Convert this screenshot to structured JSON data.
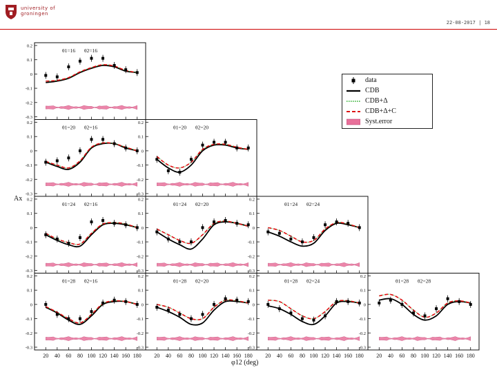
{
  "header": {
    "logo_line1": "university of",
    "logo_line2": "groningen",
    "date": "22-08-2017",
    "page": "18"
  },
  "chart_data": {
    "type": "scatter",
    "xlabel": "φ12 (deg)",
    "ylabel": "Ax",
    "xlim": [
      10,
      190
    ],
    "ylim": [
      -0.3,
      0.2
    ],
    "x_ticks": [
      20,
      40,
      60,
      80,
      100,
      120,
      140,
      160,
      180
    ],
    "y_ticks": [
      0.2,
      0.1,
      0,
      -0.1,
      -0.2,
      -0.3
    ],
    "x_tick_labels": [
      "20",
      "40",
      "60",
      "80",
      "100",
      "120",
      "140",
      "160",
      "180"
    ],
    "y_tick_labels": [
      "0.2",
      "0.1",
      "0",
      "-0.1",
      "-0.2",
      "-0.3"
    ],
    "legend": [
      {
        "label": "data",
        "style": "marker",
        "color": "#000000"
      },
      {
        "label": "CDB",
        "style": "solid",
        "color": "#000000"
      },
      {
        "label": "CDB+Δ",
        "style": "dotted",
        "color": "#22aa22"
      },
      {
        "label": "CDB+Δ+C",
        "style": "dashed",
        "color": "#dd1111"
      },
      {
        "label": "Syst.error",
        "style": "band",
        "color": "#e8709a"
      }
    ],
    "panels": [
      {
        "row": 0,
        "col": 0,
        "theta1": "θ1=16",
        "theta2": "θ2=16",
        "data": [
          [
            20,
            -0.01
          ],
          [
            40,
            -0.02
          ],
          [
            60,
            0.05
          ],
          [
            80,
            0.09
          ],
          [
            100,
            0.11
          ],
          [
            120,
            0.11
          ],
          [
            140,
            0.06
          ],
          [
            160,
            0.03
          ],
          [
            180,
            0.01
          ]
        ],
        "cdb": [
          [
            20,
            -0.06
          ],
          [
            40,
            -0.05
          ],
          [
            60,
            -0.03
          ],
          [
            80,
            0.01
          ],
          [
            100,
            0.04
          ],
          [
            120,
            0.06
          ],
          [
            140,
            0.05
          ],
          [
            160,
            0.02
          ],
          [
            180,
            0.01
          ]
        ],
        "cdbdc": [
          [
            20,
            -0.05
          ],
          [
            40,
            -0.045
          ],
          [
            60,
            -0.025
          ],
          [
            80,
            0.015
          ],
          [
            100,
            0.045
          ],
          [
            120,
            0.065
          ],
          [
            140,
            0.055
          ],
          [
            160,
            0.025
          ],
          [
            180,
            0.01
          ]
        ],
        "syst": -0.235
      },
      {
        "row": 1,
        "col": 0,
        "theta1": "θ1=20",
        "theta2": "θ2=16",
        "data": [
          [
            20,
            -0.08
          ],
          [
            40,
            -0.07
          ],
          [
            60,
            -0.05
          ],
          [
            80,
            0.0
          ],
          [
            100,
            0.08
          ],
          [
            120,
            0.08
          ],
          [
            140,
            0.05
          ],
          [
            160,
            0.02
          ],
          [
            180,
            0.0
          ]
        ],
        "cdb": [
          [
            20,
            -0.08
          ],
          [
            40,
            -0.11
          ],
          [
            60,
            -0.13
          ],
          [
            80,
            -0.08
          ],
          [
            100,
            0.02
          ],
          [
            120,
            0.05
          ],
          [
            140,
            0.05
          ],
          [
            160,
            0.02
          ],
          [
            180,
            0.0
          ]
        ],
        "cdbdc": [
          [
            20,
            -0.075
          ],
          [
            40,
            -0.1
          ],
          [
            60,
            -0.12
          ],
          [
            80,
            -0.07
          ],
          [
            100,
            0.025
          ],
          [
            120,
            0.055
          ],
          [
            140,
            0.05
          ],
          [
            160,
            0.025
          ],
          [
            180,
            0.0
          ]
        ],
        "syst": -0.235
      },
      {
        "row": 1,
        "col": 1,
        "theta1": "θ1=20",
        "theta2": "θ2=20",
        "data": [
          [
            20,
            -0.06
          ],
          [
            40,
            -0.14
          ],
          [
            60,
            -0.15
          ],
          [
            80,
            -0.06
          ],
          [
            100,
            0.04
          ],
          [
            120,
            0.06
          ],
          [
            140,
            0.06
          ],
          [
            160,
            0.02
          ],
          [
            180,
            0.02
          ]
        ],
        "cdb": [
          [
            20,
            -0.06
          ],
          [
            40,
            -0.12
          ],
          [
            60,
            -0.15
          ],
          [
            80,
            -0.1
          ],
          [
            100,
            0.0
          ],
          [
            120,
            0.04
          ],
          [
            140,
            0.04
          ],
          [
            160,
            0.02
          ],
          [
            180,
            0.01
          ]
        ],
        "cdbdc": [
          [
            20,
            -0.04
          ],
          [
            40,
            -0.1
          ],
          [
            60,
            -0.12
          ],
          [
            80,
            -0.08
          ],
          [
            100,
            0.01
          ],
          [
            120,
            0.045
          ],
          [
            140,
            0.045
          ],
          [
            160,
            0.025
          ],
          [
            180,
            0.01
          ]
        ],
        "syst": -0.235
      },
      {
        "row": 2,
        "col": 0,
        "theta1": "θ1=24",
        "theta2": "θ2=16",
        "data": [
          [
            20,
            -0.05
          ],
          [
            40,
            -0.08
          ],
          [
            60,
            -0.11
          ],
          [
            80,
            -0.07
          ],
          [
            100,
            0.04
          ],
          [
            120,
            0.05
          ],
          [
            140,
            0.03
          ],
          [
            160,
            0.02
          ],
          [
            180,
            0.0
          ]
        ],
        "cdb": [
          [
            20,
            -0.05
          ],
          [
            40,
            -0.09
          ],
          [
            60,
            -0.12
          ],
          [
            80,
            -0.13
          ],
          [
            100,
            -0.05
          ],
          [
            120,
            0.02
          ],
          [
            140,
            0.03
          ],
          [
            160,
            0.02
          ],
          [
            180,
            0.0
          ]
        ],
        "cdbdc": [
          [
            20,
            -0.04
          ],
          [
            40,
            -0.08
          ],
          [
            60,
            -0.105
          ],
          [
            80,
            -0.115
          ],
          [
            100,
            -0.04
          ],
          [
            120,
            0.025
          ],
          [
            140,
            0.035
          ],
          [
            160,
            0.025
          ],
          [
            180,
            0.0
          ]
        ],
        "syst": -0.26
      },
      {
        "row": 2,
        "col": 1,
        "theta1": "θ1=24",
        "theta2": "θ2=20",
        "data": [
          [
            20,
            -0.03
          ],
          [
            40,
            -0.08
          ],
          [
            60,
            -0.1
          ],
          [
            80,
            -0.1
          ],
          [
            100,
            0.0
          ],
          [
            120,
            0.04
          ],
          [
            140,
            0.05
          ],
          [
            160,
            0.03
          ],
          [
            180,
            0.02
          ]
        ],
        "cdb": [
          [
            20,
            -0.03
          ],
          [
            40,
            -0.08
          ],
          [
            60,
            -0.12
          ],
          [
            80,
            -0.15
          ],
          [
            100,
            -0.08
          ],
          [
            120,
            0.02
          ],
          [
            140,
            0.04
          ],
          [
            160,
            0.03
          ],
          [
            180,
            0.01
          ]
        ],
        "cdbdc": [
          [
            20,
            -0.01
          ],
          [
            40,
            -0.05
          ],
          [
            60,
            -0.09
          ],
          [
            80,
            -0.11
          ],
          [
            100,
            -0.05
          ],
          [
            120,
            0.03
          ],
          [
            140,
            0.045
          ],
          [
            160,
            0.03
          ],
          [
            180,
            0.01
          ]
        ],
        "syst": -0.26
      },
      {
        "row": 2,
        "col": 2,
        "theta1": "θ1=24",
        "theta2": "θ2=24",
        "data": [
          [
            20,
            -0.03
          ],
          [
            40,
            -0.04
          ],
          [
            60,
            -0.08
          ],
          [
            80,
            -0.1
          ],
          [
            100,
            -0.07
          ],
          [
            120,
            0.02
          ],
          [
            140,
            0.04
          ],
          [
            160,
            0.03
          ],
          [
            180,
            0.0
          ]
        ],
        "cdb": [
          [
            20,
            -0.03
          ],
          [
            40,
            -0.06
          ],
          [
            60,
            -0.1
          ],
          [
            80,
            -0.13
          ],
          [
            100,
            -0.11
          ],
          [
            120,
            -0.02
          ],
          [
            140,
            0.03
          ],
          [
            160,
            0.02
          ],
          [
            180,
            0.0
          ]
        ],
        "cdbdc": [
          [
            20,
            0.0
          ],
          [
            40,
            -0.02
          ],
          [
            60,
            -0.06
          ],
          [
            80,
            -0.1
          ],
          [
            100,
            -0.09
          ],
          [
            120,
            -0.01
          ],
          [
            140,
            0.035
          ],
          [
            160,
            0.025
          ],
          [
            180,
            0.0
          ]
        ],
        "syst": -0.26
      },
      {
        "row": 3,
        "col": 0,
        "theta1": "θ1=28",
        "theta2": "θ2=16",
        "data": [
          [
            20,
            0.0
          ],
          [
            40,
            -0.07
          ],
          [
            60,
            -0.1
          ],
          [
            80,
            -0.1
          ],
          [
            100,
            -0.05
          ],
          [
            120,
            0.01
          ],
          [
            140,
            0.03
          ],
          [
            160,
            0.02
          ],
          [
            180,
            0.0
          ]
        ],
        "cdb": [
          [
            20,
            -0.02
          ],
          [
            40,
            -0.06
          ],
          [
            60,
            -0.11
          ],
          [
            80,
            -0.14
          ],
          [
            100,
            -0.08
          ],
          [
            120,
            0.0
          ],
          [
            140,
            0.02
          ],
          [
            160,
            0.02
          ],
          [
            180,
            0.0
          ]
        ],
        "cdbdc": [
          [
            20,
            -0.015
          ],
          [
            40,
            -0.055
          ],
          [
            60,
            -0.1
          ],
          [
            80,
            -0.13
          ],
          [
            100,
            -0.07
          ],
          [
            120,
            0.005
          ],
          [
            140,
            0.025
          ],
          [
            160,
            0.02
          ],
          [
            180,
            0.0
          ]
        ],
        "syst": -0.24
      },
      {
        "row": 3,
        "col": 1,
        "theta1": "θ1=28",
        "theta2": "θ2=20",
        "data": [
          [
            20,
            -0.02
          ],
          [
            40,
            -0.04
          ],
          [
            60,
            -0.07
          ],
          [
            80,
            -0.1
          ],
          [
            100,
            -0.07
          ],
          [
            120,
            0.0
          ],
          [
            140,
            0.04
          ],
          [
            160,
            0.03
          ],
          [
            180,
            0.02
          ]
        ],
        "cdb": [
          [
            20,
            -0.02
          ],
          [
            40,
            -0.05
          ],
          [
            60,
            -0.09
          ],
          [
            80,
            -0.14
          ],
          [
            100,
            -0.13
          ],
          [
            120,
            -0.04
          ],
          [
            140,
            0.02
          ],
          [
            160,
            0.02
          ],
          [
            180,
            0.01
          ]
        ],
        "cdbdc": [
          [
            20,
            0.0
          ],
          [
            40,
            -0.02
          ],
          [
            60,
            -0.06
          ],
          [
            80,
            -0.1
          ],
          [
            100,
            -0.1
          ],
          [
            120,
            -0.02
          ],
          [
            140,
            0.03
          ],
          [
            160,
            0.025
          ],
          [
            180,
            0.01
          ]
        ],
        "syst": -0.24
      },
      {
        "row": 3,
        "col": 2,
        "theta1": "θ1=28",
        "theta2": "θ2=24",
        "data": [
          [
            20,
            0.0
          ],
          [
            40,
            -0.03
          ],
          [
            60,
            -0.06
          ],
          [
            80,
            -0.1
          ],
          [
            100,
            -0.11
          ],
          [
            120,
            -0.08
          ],
          [
            140,
            0.02
          ],
          [
            160,
            0.02
          ],
          [
            180,
            0.01
          ]
        ],
        "cdb": [
          [
            20,
            -0.01
          ],
          [
            40,
            -0.03
          ],
          [
            60,
            -0.07
          ],
          [
            80,
            -0.12
          ],
          [
            100,
            -0.14
          ],
          [
            120,
            -0.08
          ],
          [
            140,
            0.01
          ],
          [
            160,
            0.02
          ],
          [
            180,
            0.01
          ]
        ],
        "cdbdc": [
          [
            20,
            0.03
          ],
          [
            40,
            0.02
          ],
          [
            60,
            -0.03
          ],
          [
            80,
            -0.08
          ],
          [
            100,
            -0.1
          ],
          [
            120,
            -0.05
          ],
          [
            140,
            0.02
          ],
          [
            160,
            0.025
          ],
          [
            180,
            0.01
          ]
        ],
        "syst": -0.24
      },
      {
        "row": 3,
        "col": 3,
        "theta1": "θ1=28",
        "theta2": "θ2=28",
        "data": [
          [
            20,
            0.01
          ],
          [
            40,
            0.03
          ],
          [
            60,
            0.0
          ],
          [
            80,
            -0.06
          ],
          [
            100,
            -0.08
          ],
          [
            120,
            -0.03
          ],
          [
            140,
            0.04
          ],
          [
            160,
            0.02
          ],
          [
            180,
            0.0
          ]
        ],
        "cdb": [
          [
            20,
            0.03
          ],
          [
            40,
            0.04
          ],
          [
            60,
            0.0
          ],
          [
            80,
            -0.07
          ],
          [
            100,
            -0.11
          ],
          [
            120,
            -0.08
          ],
          [
            140,
            0.0
          ],
          [
            160,
            0.02
          ],
          [
            180,
            0.01
          ]
        ],
        "cdbdc": [
          [
            20,
            0.06
          ],
          [
            40,
            0.07
          ],
          [
            60,
            0.03
          ],
          [
            80,
            -0.04
          ],
          [
            100,
            -0.09
          ],
          [
            120,
            -0.06
          ],
          [
            140,
            0.01
          ],
          [
            160,
            0.025
          ],
          [
            180,
            0.01
          ]
        ],
        "syst": -0.24
      }
    ]
  }
}
